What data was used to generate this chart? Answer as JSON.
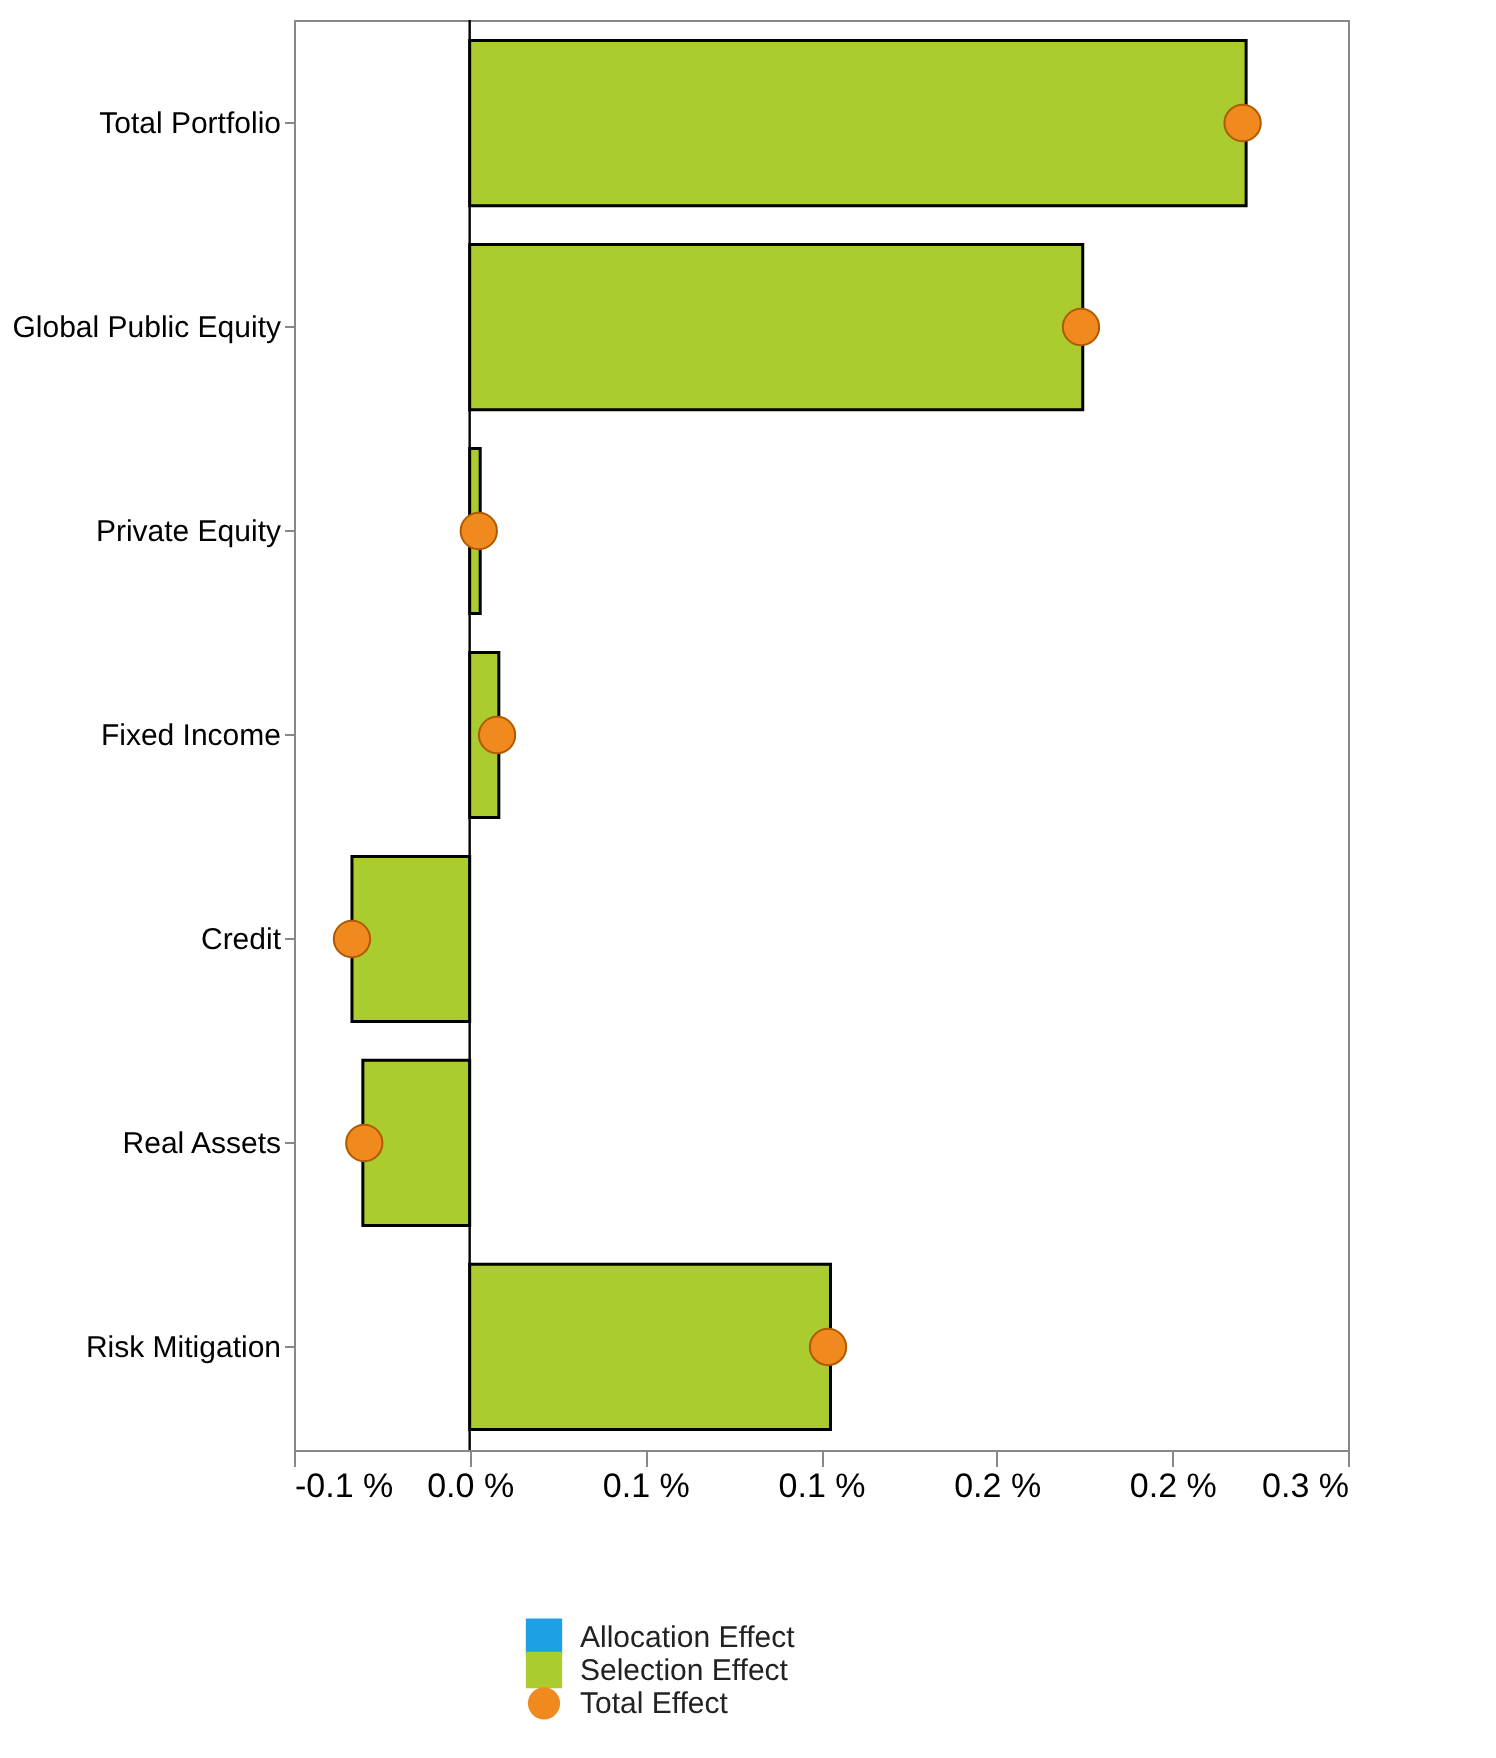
{
  "chart_data": {
    "type": "bar",
    "orientation": "horizontal",
    "categories": [
      "Total Portfolio",
      "Global Public Equity",
      "Private Equity",
      "Fixed Income",
      "Credit",
      "Real Assets",
      "Risk Mitigation"
    ],
    "series": [
      {
        "name": "Allocation Effect",
        "color": "#1ea0e6",
        "values": [
          null,
          null,
          null,
          null,
          null,
          null,
          null
        ]
      },
      {
        "name": "Selection Effect",
        "color": "#aacc2e",
        "values": [
          0.221,
          0.1745,
          0.003,
          0.0083,
          -0.0335,
          -0.0304,
          0.1027
        ]
      },
      {
        "name": "Total Effect",
        "type": "scatter",
        "marker": "circle",
        "color": "#f08a1e",
        "values": [
          0.22,
          0.174,
          0.0026,
          0.0078,
          -0.0335,
          -0.03,
          0.102
        ]
      }
    ],
    "xlim": [
      -0.05,
      0.25
    ],
    "xticks": [
      {
        "value": -0.05,
        "label": "-0.1 %"
      },
      {
        "value": 0,
        "label": "0.0 %"
      },
      {
        "value": 0.05,
        "label": "0.1 %"
      },
      {
        "value": 0.1,
        "label": "0.1 %"
      },
      {
        "value": 0.15,
        "label": "0.2 %"
      },
      {
        "value": 0.2,
        "label": "0.2 %"
      },
      {
        "value": 0.25,
        "label": "0.3 %"
      }
    ],
    "ref_lines": [
      {
        "axis": "x",
        "value": 0,
        "color": "#000000"
      }
    ],
    "grid": false,
    "legend": "bottom"
  }
}
